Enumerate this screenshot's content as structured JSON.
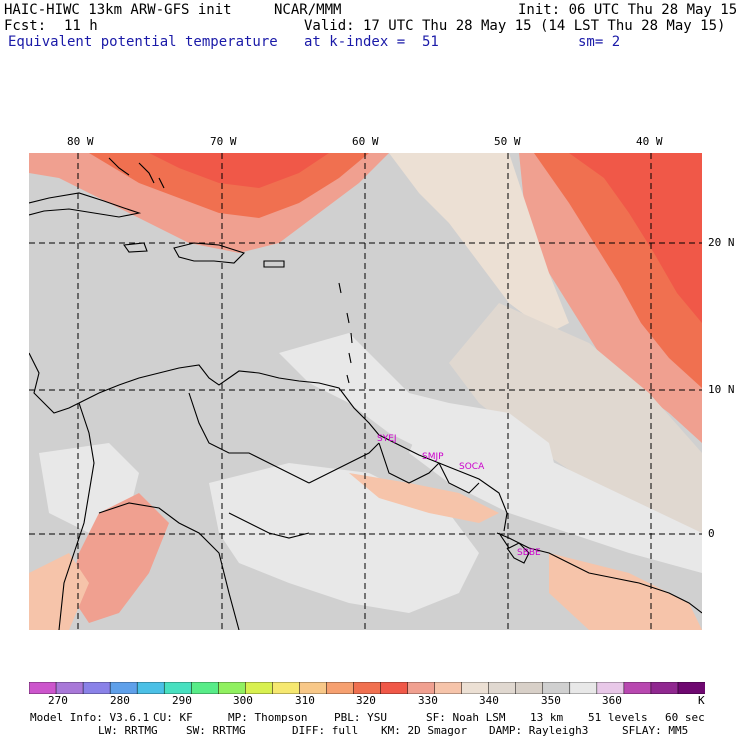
{
  "header": {
    "model": "HAIC-HIWC 13km ARW-GFS init",
    "center": "NCAR/MMM",
    "init": "Init: 06 UTC Thu 28 May 15",
    "fcst_label": "Fcst:",
    "fcst_value": "11 h",
    "valid": "Valid: 17 UTC Thu 28 May 15 (14 LST Thu 28 May 15)",
    "field": "Equivalent potential temperature",
    "level": "at k-index =  51",
    "smoothing": "sm= 2"
  },
  "map": {
    "lon_labels": [
      "80 W",
      "70 W",
      "60 W",
      "50 W",
      "40 W"
    ],
    "lat_labels": [
      "20 N",
      "10 N",
      "0"
    ],
    "stations": [
      "SYEJ",
      "SMJP",
      "SOCA",
      "SBBE"
    ]
  },
  "colorbar": {
    "colors": [
      "#cc55cc",
      "#a878d8",
      "#8a82e8",
      "#5fa0ea",
      "#4bc0e6",
      "#48e0c0",
      "#58ec88",
      "#90f060",
      "#d8f050",
      "#f6e870",
      "#f8c888",
      "#f6a070",
      "#f07050",
      "#f05848",
      "#f0a090",
      "#f6c4aa",
      "#ece0d4",
      "#e0d8d0",
      "#d8d0c8",
      "#d0d0d0",
      "#e8e8e8",
      "#e8c8e8",
      "#b848b0",
      "#902890",
      "#6e0870"
    ],
    "labels": [
      "270",
      "280",
      "290",
      "300",
      "310",
      "320",
      "330",
      "340",
      "350",
      "360"
    ],
    "unit": "K"
  },
  "footer": {
    "line1": [
      "Model Info: V3.6.1",
      "CU: KF",
      "MP: Thompson",
      "PBL: YSU",
      "SF: Noah LSM",
      "13 km",
      "51 levels",
      "60 sec"
    ],
    "line2": [
      "LW: RRTMG",
      "SW: RRTMG",
      "DIFF: full",
      "KM: 2D Smagor",
      "DAMP: Rayleigh3",
      "SFLAY: MM5"
    ]
  }
}
